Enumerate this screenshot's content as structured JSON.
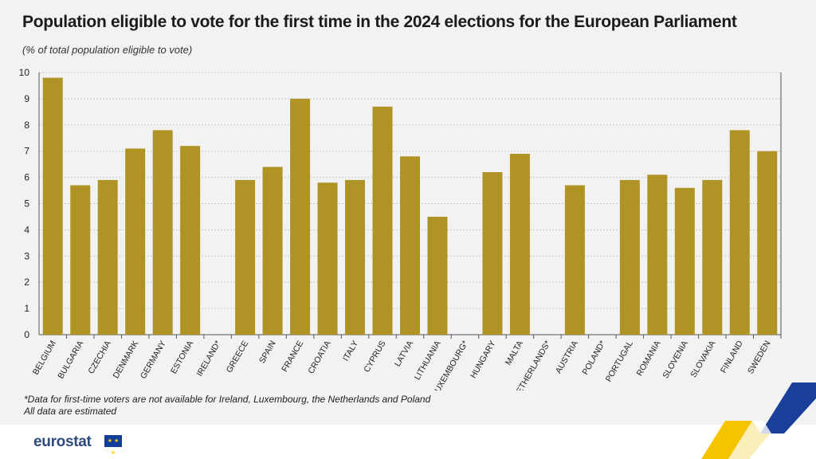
{
  "header": {
    "title": "Population eligible to vote for the first time in the 2024 elections for the European Parliament",
    "subtitle": "(% of total population eligible to vote)"
  },
  "footnotes": {
    "line1": "*Data for first-time voters are not available for Ireland, Luxembourg, the Netherlands and Poland",
    "line2": "All data are estimated"
  },
  "brand": {
    "logo_text": "eurostat",
    "bar_color": "#b09325",
    "flag_color": "#123d9a",
    "deco_colors": [
      "#f5c400",
      "#1a3f9a"
    ]
  },
  "chart_data": {
    "type": "bar",
    "title": "Population eligible to vote for the first time in the 2024 elections for the European Parliament",
    "ylabel": "",
    "xlabel": "",
    "ylim": [
      0,
      10
    ],
    "yticks": [
      0,
      1,
      2,
      3,
      4,
      5,
      6,
      7,
      8,
      9,
      10
    ],
    "grid": true,
    "categories": [
      "BELGIUM",
      "BULGARIA",
      "CZECHIA",
      "DENMARK",
      "GERMANY",
      "ESTONIA",
      "IRELAND*",
      "GREECE",
      "SPAIN",
      "FRANCE",
      "CROATIA",
      "ITALY",
      "CYPRUS",
      "LATVIA",
      "LITHUANIA",
      "LUXEMBOURG*",
      "HUNGARY",
      "MALTA",
      "NETHERLANDS*",
      "AUSTRIA",
      "POLAND*",
      "PORTUGAL",
      "ROMANIA",
      "SLOVENIA",
      "SLOVAKIA",
      "FINLAND",
      "SWEDEN"
    ],
    "values": [
      9.8,
      5.7,
      5.9,
      7.1,
      7.8,
      7.2,
      null,
      5.9,
      6.4,
      9.0,
      5.8,
      5.9,
      8.7,
      6.8,
      4.5,
      null,
      6.2,
      6.9,
      null,
      5.7,
      null,
      5.9,
      6.1,
      5.6,
      5.9,
      7.8,
      7.0
    ]
  }
}
